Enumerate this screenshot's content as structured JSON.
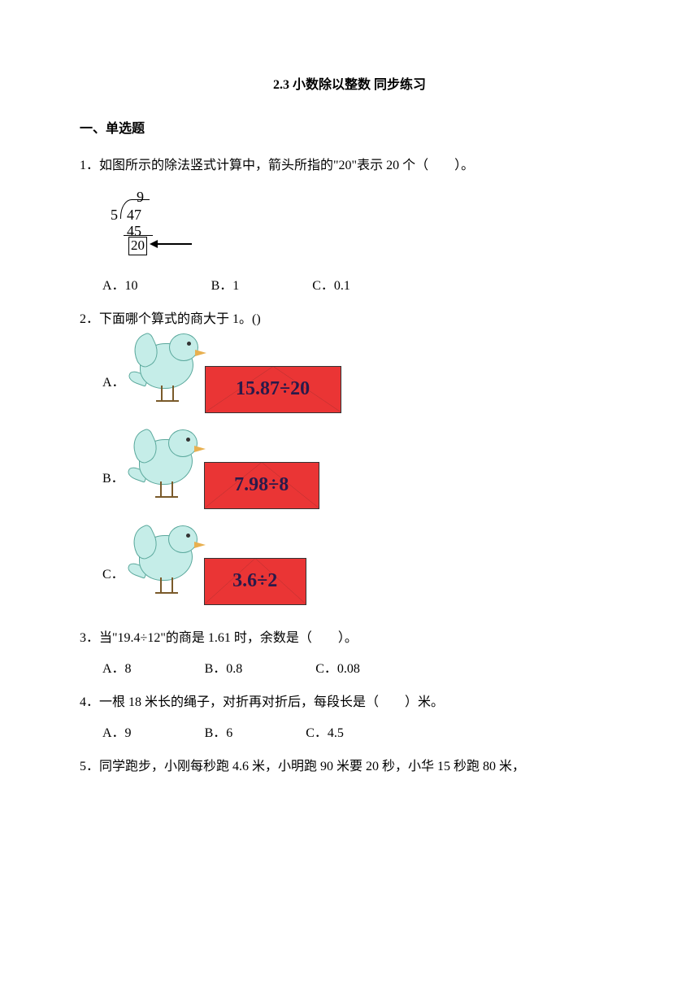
{
  "title": "2.3 小数除以整数 同步练习",
  "section1_header": "一、单选题",
  "q1": {
    "text": "1．如图所示的除法竖式计算中，箭头所指的\"20\"表示 20 个（　　）。",
    "division": {
      "quotient": "9",
      "divisor": "5",
      "dividend": "47",
      "subtrahend": "45",
      "remainder": "20"
    },
    "options": {
      "a": "A．10",
      "b": "B．1",
      "c": "C．0.1"
    }
  },
  "q2": {
    "text": "2．下面哪个算式的商大于 1。()",
    "options": {
      "a_label": "A．",
      "a_expr": "15.87÷20",
      "b_label": "B．",
      "b_expr": "7.98÷8",
      "c_label": "C．",
      "c_expr": "3.6÷2"
    },
    "envelope_widths": {
      "a": "168px",
      "b": "142px",
      "c": "126px"
    }
  },
  "q3": {
    "text": "3．当\"19.4÷12\"的商是 1.61 时，余数是（　　）。",
    "options": {
      "a": "A．8",
      "b": "B．0.8",
      "c": "C．0.08"
    }
  },
  "q4": {
    "text": "4．一根 18 米长的绳子，对折再对折后，每段长是（　　）米。",
    "options": {
      "a": "A．9",
      "b": "B．6",
      "c": "C．4.5"
    }
  },
  "q5": {
    "text": "5．同学跑步，小刚每秒跑 4.6 米，小明跑 90 米要 20 秒，小华 15 秒跑 80 米，"
  },
  "colors": {
    "bird_fill": "#c5ede8",
    "bird_stroke": "#5aa89c",
    "envelope_bg": "#ea3535",
    "envelope_text": "#2a1a4a",
    "beak": "#e8b050",
    "leg": "#7a5a2a"
  }
}
